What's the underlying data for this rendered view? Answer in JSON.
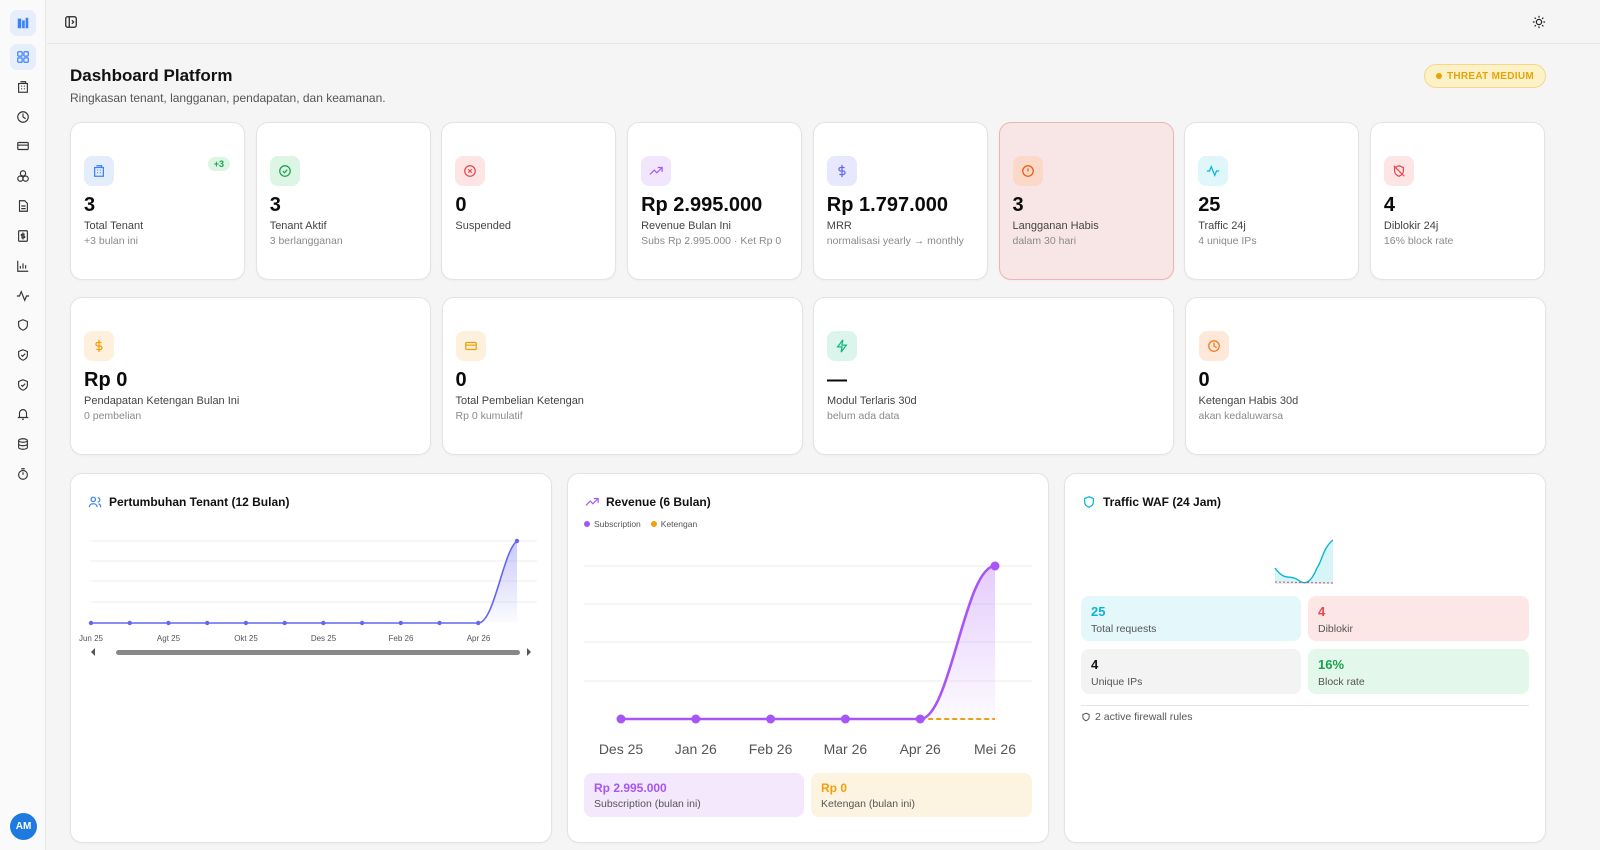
{
  "page": {
    "title": "Dashboard Platform",
    "subtitle": "Ringkasan tenant, langganan, pendapatan, dan keamanan.",
    "threat_label": "THREAT MEDIUM"
  },
  "user": {
    "initials": "AM"
  },
  "stats_row1": [
    {
      "value": "3",
      "label": "Total Tenant",
      "sub": "+3 bulan ini",
      "badge": "+3",
      "icon": "building-icon",
      "color": "#3b82f6",
      "bg": "#e3edfc"
    },
    {
      "value": "3",
      "label": "Tenant Aktif",
      "sub": "3 berlangganan",
      "icon": "check-circle-icon",
      "color": "#16a34a",
      "bg": "#dcf5e5"
    },
    {
      "value": "0",
      "label": "Suspended",
      "sub": "",
      "icon": "x-circle-icon",
      "color": "#e5484d",
      "bg": "#fde5e5"
    },
    {
      "value": "Rp 2.995.000",
      "label": "Revenue Bulan Ini",
      "sub": "Subs Rp 2.995.000 · Ket Rp 0",
      "icon": "trending-up-icon",
      "color": "#a855f7",
      "bg": "#f1e6fd"
    },
    {
      "value": "Rp 1.797.000",
      "label": "MRR",
      "sub": "normalisasi yearly → monthly",
      "icon": "dollar-icon",
      "color": "#6366f1",
      "bg": "#e7e8fd"
    },
    {
      "value": "3",
      "label": "Langganan Habis",
      "sub": "dalam 30 hari",
      "icon": "alert-circle-icon",
      "color": "#ea580c",
      "bg": "#fbd9c9",
      "warn": true
    },
    {
      "value": "25",
      "label": "Traffic 24j",
      "sub": "4 unique IPs",
      "icon": "activity-icon",
      "color": "#06b6d4",
      "bg": "#dff6fb"
    },
    {
      "value": "4",
      "label": "Diblokir 24j",
      "sub": "16% block rate",
      "icon": "shield-off-icon",
      "color": "#e5484d",
      "bg": "#fde5e5"
    }
  ],
  "stats_row2": [
    {
      "value": "Rp 0",
      "label": "Pendapatan Ketengan Bulan Ini",
      "sub": "0 pembelian",
      "icon": "dollar-icon",
      "color": "#f59e0b",
      "bg": "#fdf0dc"
    },
    {
      "value": "0",
      "label": "Total Pembelian Ketengan",
      "sub": "Rp 0 kumulatif",
      "icon": "credit-card-icon",
      "color": "#f59e0b",
      "bg": "#fdf0dc"
    },
    {
      "value": "—",
      "label": "Modul Terlaris 30d",
      "sub": "belum ada data",
      "icon": "zap-icon",
      "color": "#10b981",
      "bg": "#dcf5ec"
    },
    {
      "value": "0",
      "label": "Ketengan Habis 30d",
      "sub": "akan kedaluwarsa",
      "icon": "clock-icon",
      "color": "#f97316",
      "bg": "#fde8da"
    }
  ],
  "charts": {
    "tenant_title": "Pertumbuhan Tenant (12 Bulan)",
    "revenue_title": "Revenue (6 Bulan)",
    "waf_title": "Traffic WAF (24 Jam)",
    "legend_subscription": "Subscription",
    "legend_ketengan": "Ketengan",
    "rev_sub_value": "Rp 2.995.000",
    "rev_sub_label": "Subscription (bulan ini)",
    "rev_ket_value": "Rp 0",
    "rev_ket_label": "Ketengan (bulan ini)",
    "waf_total": "25",
    "waf_total_label": "Total requests",
    "waf_blocked": "4",
    "waf_blocked_label": "Diblokir",
    "waf_ips": "4",
    "waf_ips_label": "Unique IPs",
    "waf_rate": "16%",
    "waf_rate_label": "Block rate",
    "firewall_rules": "2 active firewall rules"
  },
  "chart_data": [
    {
      "type": "area",
      "title": "Pertumbuhan Tenant (12 Bulan)",
      "x_tick_labels": [
        "Jun 25",
        "Agt 25",
        "Okt 25",
        "Des 25",
        "Feb 26",
        "Apr 26"
      ],
      "series": [
        {
          "values": [
            0,
            0,
            0,
            0,
            0,
            0,
            0,
            0,
            0,
            0,
            0,
            3
          ]
        }
      ],
      "color": "#6366f1"
    },
    {
      "type": "line",
      "title": "Revenue (6 Bulan)",
      "categories": [
        "Des 25",
        "Jan 26",
        "Feb 26",
        "Mar 26",
        "Apr 26",
        "Mei 26"
      ],
      "series": [
        {
          "name": "Subscription",
          "values": [
            0,
            0,
            0,
            0,
            0,
            2995000
          ],
          "color": "#a855f7"
        },
        {
          "name": "Ketengan",
          "values": [
            0,
            0,
            0,
            0,
            0,
            0
          ],
          "color": "#f59e0b"
        }
      ]
    }
  ]
}
